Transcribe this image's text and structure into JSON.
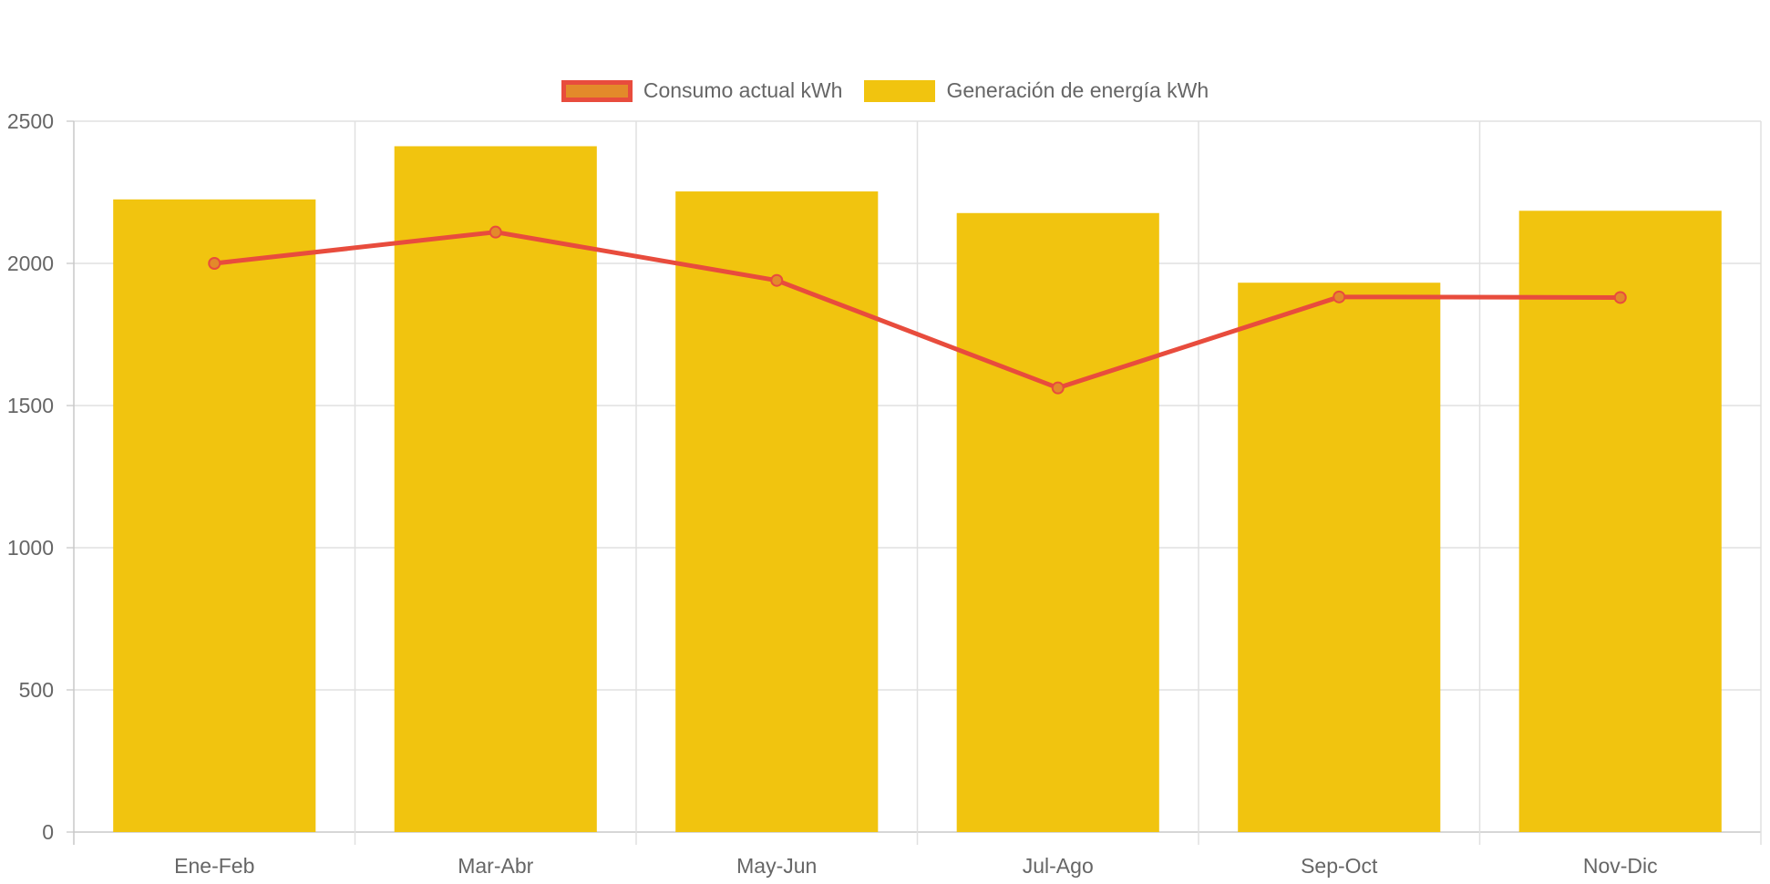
{
  "chart_data": {
    "type": "bar",
    "title": "",
    "xlabel": "",
    "ylabel": "",
    "categories": [
      "Ene-Feb",
      "Mar-Abr",
      "May-Jun",
      "Jul-Ago",
      "Sep-Oct",
      "Nov-Dic"
    ],
    "series": [
      {
        "name": "Consumo actual kWh",
        "type": "line",
        "values": [
          2000,
          2110,
          1940,
          1562,
          1882,
          1880
        ],
        "color": "#e84c3d",
        "point_fill": "#e38a2a"
      },
      {
        "name": "Generación de energía kWh",
        "type": "bar",
        "values": [
          2225,
          2412,
          2253,
          2177,
          1932,
          2185
        ],
        "color": "#f1c40f"
      }
    ],
    "ylim": [
      0,
      2500
    ],
    "y_ticks": [
      "0",
      "500",
      "1000",
      "1500",
      "2000",
      "2500"
    ],
    "grid": true,
    "legend_position": "top-center"
  }
}
